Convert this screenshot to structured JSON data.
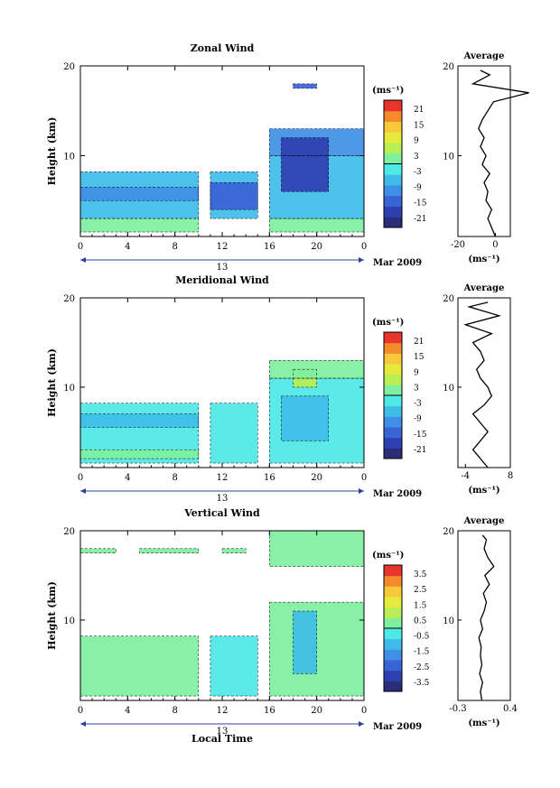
{
  "x_label": "Local Time",
  "date_label": "Mar 2009",
  "day_label": "13",
  "y_label": "Height (km)",
  "unit_label": "(ms⁻¹)",
  "average_title": "Average",
  "chart_data": [
    {
      "type": "heatmap",
      "title": "Zonal Wind",
      "x_ticks": [
        "0",
        "4",
        "8",
        "12",
        "16",
        "20",
        "0"
      ],
      "y_ticks": [
        "10",
        "20"
      ],
      "xlim": [
        0,
        24
      ],
      "ylim": [
        1,
        20
      ],
      "colorbar": {
        "ticks": [
          "21",
          "15",
          "9",
          "3",
          "-3",
          "-9",
          "-15",
          "-21"
        ],
        "range": [
          -24,
          24
        ]
      },
      "cells": [
        {
          "t0": 0,
          "t1": 10,
          "h0": 3,
          "h1": 8.2,
          "v": -6
        },
        {
          "t0": 0,
          "t1": 10,
          "h0": 5,
          "h1": 6.5,
          "v": -12
        },
        {
          "t0": 0,
          "t1": 10,
          "h0": 1.5,
          "h1": 3,
          "v": 2
        },
        {
          "t0": 11,
          "t1": 15,
          "h0": 3,
          "h1": 8.2,
          "v": -7
        },
        {
          "t0": 11,
          "t1": 15,
          "h0": 4,
          "h1": 7,
          "v": -13
        },
        {
          "t0": 16,
          "t1": 24,
          "h0": 1.5,
          "h1": 3,
          "v": 1
        },
        {
          "t0": 16,
          "t1": 24,
          "h0": 3,
          "h1": 10,
          "v": -6
        },
        {
          "t0": 16,
          "t1": 24,
          "h0": 10,
          "h1": 13,
          "v": -9
        },
        {
          "t0": 17,
          "t1": 21,
          "h0": 6,
          "h1": 12,
          "v": -17
        },
        {
          "t0": 18,
          "t1": 20,
          "h0": 17.5,
          "h1": 18,
          "v": -15
        }
      ],
      "average": {
        "xlim": [
          -20,
          8
        ],
        "x_ticks": [
          "-20",
          "0"
        ],
        "y_ticks": [
          "10",
          "20"
        ],
        "height": [
          1,
          2,
          3,
          4,
          5,
          6,
          7,
          8,
          9,
          10,
          11,
          12,
          13,
          14,
          15,
          16,
          17,
          18,
          19,
          19.5
        ],
        "value": [
          0,
          -2,
          -4,
          -2,
          -5,
          -4,
          -6,
          -3,
          -7,
          -5,
          -8,
          -6,
          -9,
          -7,
          -4,
          -1,
          18,
          -12,
          -3,
          -8
        ]
      }
    },
    {
      "type": "heatmap",
      "title": "Meridional Wind",
      "x_ticks": [
        "0",
        "4",
        "8",
        "12",
        "16",
        "20",
        "0"
      ],
      "y_ticks": [
        "10",
        "20"
      ],
      "xlim": [
        0,
        24
      ],
      "ylim": [
        1,
        20
      ],
      "colorbar": {
        "ticks": [
          "21",
          "15",
          "9",
          "3",
          "-3",
          "-9",
          "-15",
          "-21"
        ],
        "range": [
          -24,
          24
        ]
      },
      "cells": [
        {
          "t0": 0,
          "t1": 10,
          "h0": 1.5,
          "h1": 8.2,
          "v": -2
        },
        {
          "t0": 0,
          "t1": 10,
          "h0": 5.5,
          "h1": 7,
          "v": -5
        },
        {
          "t0": 0,
          "t1": 10,
          "h0": 2,
          "h1": 3,
          "v": 1
        },
        {
          "t0": 11,
          "t1": 15,
          "h0": 1.5,
          "h1": 8.2,
          "v": -3
        },
        {
          "t0": 16,
          "t1": 24,
          "h0": 1.5,
          "h1": 11,
          "v": -2
        },
        {
          "t0": 17,
          "t1": 21,
          "h0": 4,
          "h1": 9,
          "v": -8
        },
        {
          "t0": 18,
          "t1": 20,
          "h0": 10,
          "h1": 12,
          "v": 4
        },
        {
          "t0": 16,
          "t1": 24,
          "h0": 11,
          "h1": 13,
          "v": 0
        }
      ],
      "average": {
        "xlim": [
          -6,
          8
        ],
        "x_ticks": [
          "-4",
          "8"
        ],
        "y_ticks": [
          "10",
          "20"
        ],
        "height": [
          1,
          2,
          3,
          4,
          5,
          6,
          7,
          8,
          9,
          10,
          11,
          12,
          13,
          14,
          15,
          16,
          17,
          18,
          19,
          19.5
        ],
        "value": [
          2,
          0,
          -2,
          0,
          2,
          0,
          -2,
          1,
          3,
          2,
          0,
          -1,
          1,
          0,
          -2,
          3,
          -4,
          5,
          -3,
          2
        ]
      }
    },
    {
      "type": "heatmap",
      "title": "Vertical Wind",
      "x_ticks": [
        "0",
        "4",
        "8",
        "12",
        "16",
        "20",
        "0"
      ],
      "y_ticks": [
        "10",
        "20"
      ],
      "xlim": [
        0,
        24
      ],
      "ylim": [
        1,
        20
      ],
      "colorbar": {
        "ticks": [
          "3.5",
          "2.5",
          "1.5",
          "0.5",
          "-0.5",
          "-1.5",
          "-2.5",
          "-3.5"
        ],
        "range": [
          -4,
          4
        ]
      },
      "cells": [
        {
          "t0": 0,
          "t1": 10,
          "h0": 1.5,
          "h1": 8.2,
          "v": 0.1
        },
        {
          "t0": 11,
          "t1": 15,
          "h0": 1.5,
          "h1": 8.2,
          "v": -0.2
        },
        {
          "t0": 16,
          "t1": 24,
          "h0": 1.5,
          "h1": 12,
          "v": 0
        },
        {
          "t0": 18,
          "t1": 20,
          "h0": 4,
          "h1": 11,
          "v": -0.7
        },
        {
          "t0": 16,
          "t1": 24,
          "h0": 16,
          "h1": 20,
          "v": 0.2
        },
        {
          "t0": 0,
          "t1": 3,
          "h0": 17.5,
          "h1": 18,
          "v": 0.3
        },
        {
          "t0": 5,
          "t1": 10,
          "h0": 17.5,
          "h1": 18,
          "v": 0.3
        },
        {
          "t0": 12,
          "t1": 14,
          "h0": 17.5,
          "h1": 18,
          "v": 0.2
        }
      ],
      "average": {
        "xlim": [
          -0.3,
          0.4
        ],
        "x_ticks": [
          "-0.3",
          "0.4"
        ],
        "y_ticks": [
          "10",
          "20"
        ],
        "height": [
          1,
          2,
          3,
          4,
          5,
          6,
          7,
          8,
          9,
          10,
          11,
          12,
          13,
          14,
          15,
          16,
          17,
          18,
          19,
          19.5
        ],
        "value": [
          0.02,
          0.0,
          0.03,
          -0.01,
          0.02,
          0.0,
          0.01,
          -0.02,
          0.03,
          0.0,
          0.05,
          0.08,
          0.04,
          0.12,
          0.06,
          0.18,
          0.1,
          0.05,
          0.08,
          0.03
        ]
      }
    }
  ]
}
